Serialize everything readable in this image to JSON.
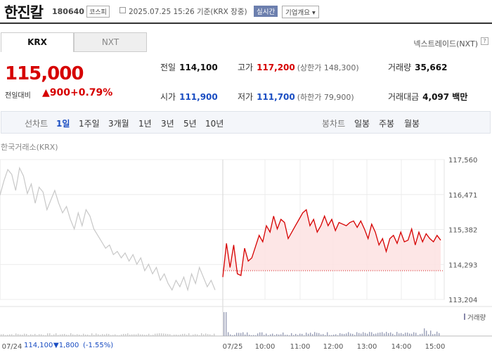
{
  "header": {
    "name": "한진칼",
    "code": "180640",
    "market": "코스피",
    "date": "2025.07.25 15:26 기준(KRX 장중)",
    "realtime": "실시간",
    "corp_info": "기업개요"
  },
  "tabs": [
    "KRX",
    "NXT"
  ],
  "nxt_link": "넥스트레이드(NXT)",
  "price": {
    "current": "115,000",
    "change_label": "전일대비",
    "change": "900",
    "change_pct": "+0.79%"
  },
  "stats": {
    "prev_label": "전일",
    "prev": "114,100",
    "high_label": "고가",
    "high": "117,200",
    "upper_limit": "(상한가 148,300)",
    "volume_label": "거래량",
    "volume": "35,662",
    "open_label": "시가",
    "open": "111,900",
    "low_label": "저가",
    "low": "111,700",
    "lower_limit": "(하한가 79,900)",
    "amount_label": "거래대금",
    "amount": "4,097 백만"
  },
  "period": {
    "line_label": "선차트",
    "line_items": [
      "1일",
      "1주일",
      "3개월",
      "1년",
      "3년",
      "5년",
      "10년"
    ],
    "candle_label": "봉차트",
    "candle_items": [
      "일봉",
      "주봉",
      "월봉"
    ]
  },
  "chart_title": "한국거래소(KRX)",
  "volume_legend": "거래량",
  "footer": {
    "date": "07/24",
    "prev_close": "114,100",
    "change": "▼1,800",
    "change_pct": "(-1.55%)"
  },
  "colors": {
    "up": "#d60000",
    "down": "#1a4dc2",
    "fill": "#fde3e3",
    "prev_line": "#c8c8c8"
  },
  "chart_data": {
    "type": "line",
    "ylim": [
      113204,
      117560
    ],
    "yticks": [
      "117,560",
      "116,471",
      "115,382",
      "114,293",
      "113,204"
    ],
    "xticks": [
      "07/24",
      "07/25",
      "10:00",
      "11:00",
      "12:00",
      "13:00",
      "14:00",
      "15:00"
    ],
    "base": 114100,
    "prev_day": [
      116450,
      116900,
      117250,
      117100,
      116600,
      117300,
      117050,
      116500,
      116800,
      116200,
      116700,
      116550,
      116000,
      116300,
      116600,
      116200,
      115900,
      116100,
      115700,
      115400,
      115900,
      115500,
      116000,
      115800,
      115400,
      115200,
      115000,
      114800,
      114900,
      114600,
      114700,
      114500,
      114650,
      114400,
      114600,
      114300,
      114500,
      114100,
      114300,
      114000,
      114200,
      113800,
      114000,
      113700,
      113500,
      113800,
      113600,
      113900,
      113500,
      114000,
      113700,
      114200,
      113900,
      113600,
      113800,
      113500
    ],
    "today": [
      113900,
      114950,
      114200,
      114900,
      114000,
      113950,
      114800,
      114400,
      114500,
      114850,
      115200,
      115000,
      115500,
      115300,
      115800,
      115400,
      115700,
      115600,
      115100,
      115300,
      115500,
      115700,
      115900,
      116000,
      115500,
      115700,
      115300,
      115500,
      115800,
      115500,
      115700,
      115350,
      115600,
      115550,
      115500,
      115600,
      115650,
      115450,
      115650,
      115400,
      115100,
      115550,
      115300,
      114900,
      115100,
      114700,
      115100,
      115200,
      114950,
      115300,
      115000,
      115050,
      115400,
      114900,
      115300,
      115000,
      115250,
      115100,
      115000,
      115200,
      115050
    ]
  }
}
